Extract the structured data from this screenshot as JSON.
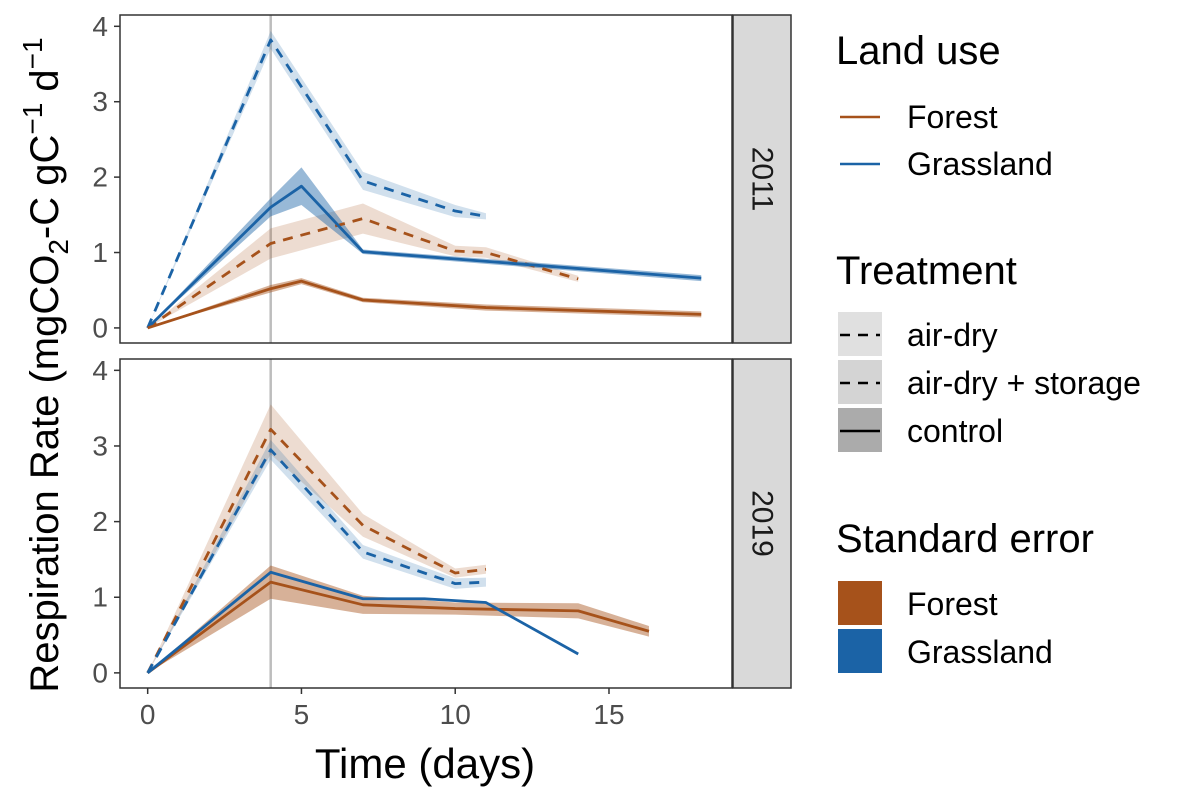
{
  "chart_data": {
    "type": "line",
    "xlabel": "Time (days)",
    "ylabel_main": "Respiration Rate (mgCO",
    "ylabel_sub": "2",
    "ylabel_mid": "-C gC",
    "ylabel_sup1": "−1",
    "ylabel_mid2": " d",
    "ylabel_sup2": "−1",
    "xlim": [
      -0.9,
      19.0
    ],
    "ylim": [
      -0.2,
      4.15
    ],
    "xticks": [
      0,
      5,
      10,
      15
    ],
    "yticks": [
      0,
      1,
      2,
      3,
      4
    ],
    "vline_x": 4,
    "colors": {
      "Forest": "#A6521B",
      "Grassland": "#1B63A6",
      "strip_bg": "#D9D9D9",
      "vline": "#BDBDBD"
    },
    "legends": {
      "land_use": {
        "title": "Land use",
        "items": [
          "Forest",
          "Grassland"
        ]
      },
      "treatment": {
        "title": "Treatment",
        "items": [
          "air-dry",
          "air-dry + storage",
          "control"
        ]
      },
      "standard_error": {
        "title": "Standard error",
        "items": [
          "Forest",
          "Grassland"
        ]
      }
    },
    "panels": [
      {
        "strip": "2011",
        "series": [
          {
            "land_use": "Grassland",
            "treatment": "air-dry",
            "x": [
              0,
              4,
              7,
              10,
              11
            ],
            "y": [
              0,
              3.82,
              1.95,
              1.55,
              1.48
            ],
            "se": [
              0,
              0.12,
              0.12,
              0.08,
              0.04
            ]
          },
          {
            "land_use": "Forest",
            "treatment": "air-dry",
            "x": [
              0,
              4,
              7,
              10,
              11,
              14
            ],
            "y": [
              0,
              1.12,
              1.45,
              1.02,
              1.0,
              0.65
            ],
            "se": [
              0,
              0.2,
              0.2,
              0.07,
              0.07,
              0.04
            ]
          },
          {
            "land_use": "Grassland",
            "treatment": "control",
            "x": [
              0,
              4,
              5,
              7,
              18
            ],
            "y": [
              0,
              1.6,
              1.88,
              1.01,
              0.66
            ],
            "se": [
              0,
              0.12,
              0.25,
              0.03,
              0.04
            ]
          },
          {
            "land_use": "Forest",
            "treatment": "control",
            "x": [
              0,
              4,
              5,
              7,
              11,
              18
            ],
            "y": [
              0,
              0.52,
              0.62,
              0.37,
              0.27,
              0.18
            ],
            "se": [
              0,
              0.05,
              0.04,
              0.03,
              0.04,
              0.04
            ]
          }
        ]
      },
      {
        "strip": "2019",
        "series": [
          {
            "land_use": "Forest",
            "treatment": "air-dry + storage",
            "x": [
              0,
              4,
              7,
              10,
              11
            ],
            "y": [
              0,
              3.22,
              1.95,
              1.32,
              1.37
            ],
            "se": [
              0,
              0.33,
              0.15,
              0.06,
              0.06
            ]
          },
          {
            "land_use": "Grassland",
            "treatment": "air-dry + storage",
            "x": [
              0,
              4,
              7,
              10,
              11
            ],
            "y": [
              0,
              2.95,
              1.6,
              1.18,
              1.2
            ],
            "se": [
              0,
              0.13,
              0.09,
              0.07,
              0.06
            ]
          },
          {
            "land_use": "Forest",
            "treatment": "control",
            "x": [
              0,
              4,
              7,
              10,
              14,
              16.3
            ],
            "y": [
              0,
              1.2,
              0.9,
              0.85,
              0.82,
              0.55
            ],
            "se": [
              0,
              0.22,
              0.12,
              0.08,
              0.1,
              0.07
            ]
          },
          {
            "land_use": "Grassland",
            "treatment": "control",
            "x": [
              0,
              4,
              7,
              9,
              11,
              14
            ],
            "y": [
              0,
              1.33,
              0.98,
              0.98,
              0.93,
              0.25
            ],
            "se": [
              0,
              0,
              0,
              0,
              0,
              0
            ]
          }
        ]
      }
    ]
  }
}
